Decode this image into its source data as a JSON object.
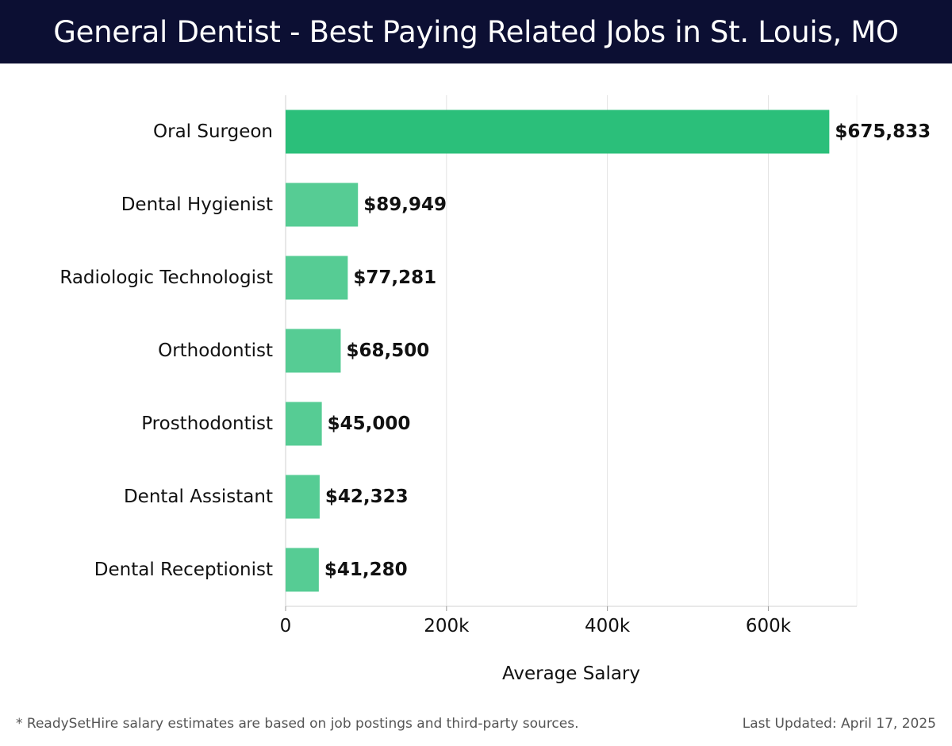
{
  "header": {
    "title": "General Dentist - Best Paying Related Jobs in St. Louis, MO"
  },
  "footer": {
    "note": "* ReadySetHire salary estimates are based on job postings and third-party sources.",
    "updated": "Last Updated: April 17, 2025"
  },
  "colors": {
    "header_bg": "#0c0f33",
    "top_bar": "#2bbf7a",
    "bar": "#56cc94"
  },
  "chart_data": {
    "type": "bar",
    "orientation": "horizontal",
    "categories": [
      "Oral Surgeon",
      "Dental Hygienist",
      "Radiologic Technologist",
      "Orthodontist",
      "Prosthodontist",
      "Dental Assistant",
      "Dental Receptionist"
    ],
    "values": [
      675833,
      89949,
      77281,
      68500,
      45000,
      42323,
      41280
    ],
    "value_labels": [
      "$675,833",
      "$89,949",
      "$77,281",
      "$68,500",
      "$45,000",
      "$42,323",
      "$41,280"
    ],
    "xlabel": "Average Salary",
    "ylabel": "",
    "xlim": [
      0,
      710000
    ],
    "xticks": [
      0,
      200000,
      400000,
      600000
    ],
    "xtick_labels": [
      "0",
      "200k",
      "400k",
      "600k"
    ],
    "grid": "vertical"
  }
}
